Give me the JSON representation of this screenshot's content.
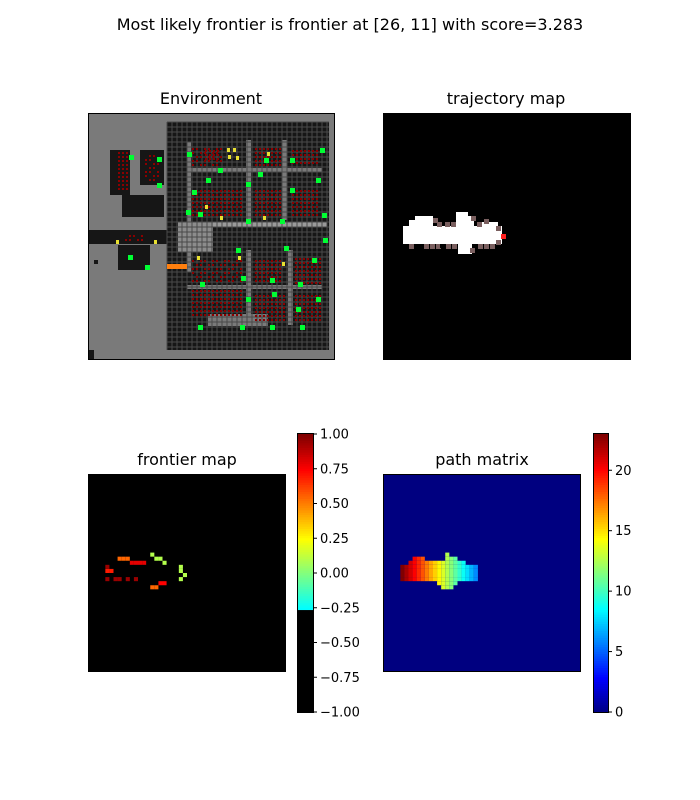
{
  "suptitle": "Most likely frontier is frontier at [26, 11] with score=3.283",
  "colors": {
    "background": "#ffffff",
    "env_gray": "#7a7a7a",
    "env_dark": "#161616",
    "env_grid": "#4a4a4a",
    "wall_red": "#8b0000",
    "wall_bright": "#cc1111",
    "green": "#00ff33",
    "yellow": "#e8e030",
    "orange": "#ff7f0e",
    "white": "#ffffff",
    "taupe": "#7a5f5f",
    "red_mark": "#ff2020",
    "path_bg": "#000080"
  },
  "chart_data": [
    {
      "type": "heatmap",
      "name": "environment",
      "title": "Environment",
      "grid_size": [
        48,
        48
      ],
      "axes": "off"
    },
    {
      "type": "heatmap",
      "name": "trajectory",
      "title": "trajectory map",
      "grid_size": [
        48,
        48
      ],
      "axes": "off"
    },
    {
      "type": "heatmap",
      "name": "frontier",
      "title": "frontier map",
      "grid_size": [
        48,
        48
      ],
      "axes": "off",
      "colorbar": {
        "min": -1.0,
        "max": 1.0,
        "ticks": [
          "−1.00",
          "−0.75",
          "−0.50",
          "−0.25",
          "0.00",
          "0.25",
          "0.50",
          "0.75",
          "1.00"
        ],
        "tick_values": [
          -1.0,
          -0.75,
          -0.5,
          -0.25,
          0.0,
          0.25,
          0.5,
          0.75,
          1.0
        ],
        "colormap": "jet, values below -0.25 shown black"
      },
      "cells": [
        {
          "x": 4,
          "y": 23,
          "v": 0.7
        },
        {
          "x": 5,
          "y": 23,
          "v": 0.7
        },
        {
          "x": 7,
          "y": 20,
          "v": 0.55
        },
        {
          "x": 8,
          "y": 20,
          "v": 0.55
        },
        {
          "x": 9,
          "y": 20,
          "v": 0.55
        },
        {
          "x": 10,
          "y": 21,
          "v": 0.8
        },
        {
          "x": 11,
          "y": 21,
          "v": 0.8
        },
        {
          "x": 12,
          "y": 21,
          "v": 0.8
        },
        {
          "x": 13,
          "y": 21,
          "v": 0.8
        },
        {
          "x": 4,
          "y": 22,
          "v": 0.95
        },
        {
          "x": 4,
          "y": 25,
          "v": 0.95
        },
        {
          "x": 6,
          "y": 25,
          "v": 0.95
        },
        {
          "x": 7,
          "y": 25,
          "v": 0.95
        },
        {
          "x": 9,
          "y": 25,
          "v": 0.95
        },
        {
          "x": 11,
          "y": 25,
          "v": 0.95
        },
        {
          "x": 15,
          "y": 19,
          "v": 0.1
        },
        {
          "x": 16,
          "y": 20,
          "v": 0.1
        },
        {
          "x": 17,
          "y": 20,
          "v": 0.1
        },
        {
          "x": 18,
          "y": 21,
          "v": 0.1
        },
        {
          "x": 22,
          "y": 22,
          "v": 0.1
        },
        {
          "x": 22,
          "y": 23,
          "v": 0.1
        },
        {
          "x": 23,
          "y": 24,
          "v": 0.1
        },
        {
          "x": 22,
          "y": 25,
          "v": 0.1
        },
        {
          "x": 15,
          "y": 27,
          "v": 0.55
        },
        {
          "x": 16,
          "y": 27,
          "v": 0.55
        },
        {
          "x": 17,
          "y": 26,
          "v": 0.75
        },
        {
          "x": 18,
          "y": 26,
          "v": 0.75
        }
      ]
    },
    {
      "type": "heatmap",
      "name": "path_matrix",
      "title": "path matrix",
      "grid_size": [
        48,
        48
      ],
      "axes": "off",
      "colorbar": {
        "min": 0,
        "max": 23,
        "ticks": [
          "0",
          "5",
          "10",
          "15",
          "20"
        ],
        "tick_values": [
          0,
          5,
          10,
          15,
          20
        ],
        "colormap": "jet"
      }
    }
  ]
}
